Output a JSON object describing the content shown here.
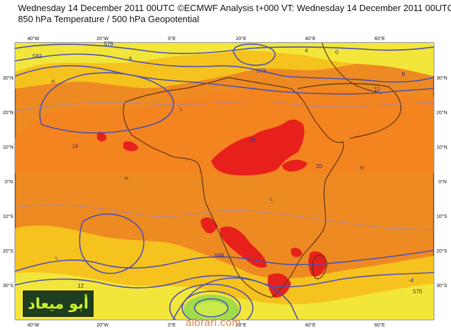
{
  "header": {
    "line1": "Wednesday 14 December 2011 00UTC ©ECMWF Analysis t+000 VT: Wednesday 14 December 2011 00UTC",
    "line2": "850 hPa Temperature / 500 hPa Geopotential"
  },
  "map": {
    "lon_labels_top": [
      "40°W",
      "20°W",
      "0°E",
      "20°E",
      "40°E",
      "60°E"
    ],
    "lon_labels_bottom": [
      "40°W",
      "20°W",
      "0°E",
      "20°E",
      "40°E",
      "60°E"
    ],
    "lat_labels_left": [
      "30°N",
      "20°N",
      "10°N",
      "0°N",
      "10°S",
      "20°S",
      "30°S"
    ],
    "lat_labels_right": [
      "30°N",
      "20°N",
      "10°N",
      "0°N",
      "10°S",
      "20°S",
      "30°S"
    ],
    "contour_labels": [
      "576",
      "582",
      "4",
      "8",
      "12",
      "16",
      "20",
      "24",
      "573",
      "0",
      "570",
      "588",
      "-4",
      "12",
      "8"
    ],
    "pressure_markers": [
      "H",
      "L"
    ],
    "colors": {
      "sea_bg": "#ee8a22",
      "warm_orange": "#f48420",
      "hot_red": "#e8201c",
      "cool_yellow": "#f6d21e",
      "pale_yellow": "#f3e63a",
      "green": "#a2dc4a",
      "contour": "#4a4fb4",
      "coast": "#5a3212"
    }
  },
  "watermark": {
    "site": "albrari.com",
    "logo_text": "أبو ميعاد"
  }
}
